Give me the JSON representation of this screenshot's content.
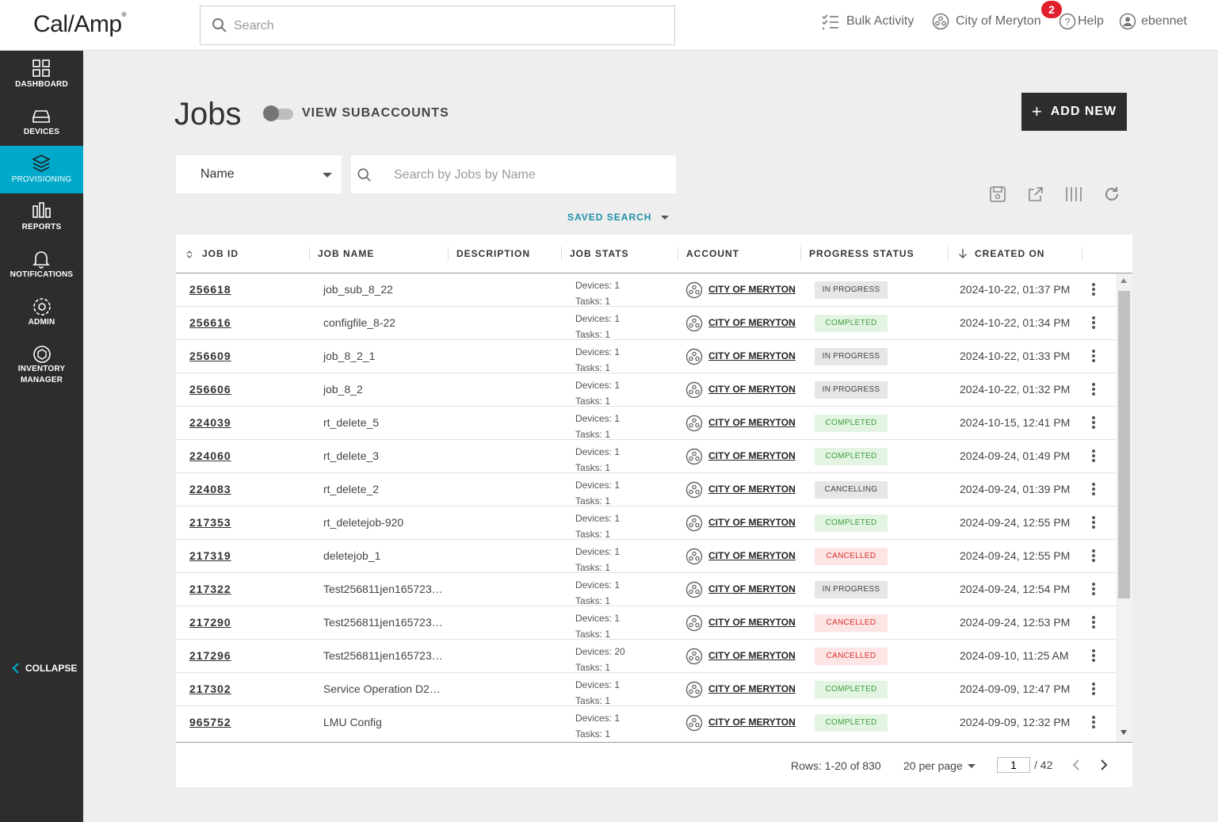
{
  "header": {
    "logo": "Cal/Amp",
    "search_placeholder": "Search",
    "bulk_activity": "Bulk Activity",
    "account": "City of Meryton",
    "notification_count": "2",
    "help": "Help",
    "user": "ebennet"
  },
  "sidebar": {
    "items": [
      {
        "label": "DASHBOARD",
        "icon": "dashboard-icon"
      },
      {
        "label": "DEVICES",
        "icon": "devices-icon"
      },
      {
        "label": "PROVISIONING",
        "icon": "layers-icon"
      },
      {
        "label": "REPORTS",
        "icon": "reports-icon"
      },
      {
        "label": "NOTIFICATIONS",
        "icon": "bell-icon"
      },
      {
        "label": "ADMIN",
        "icon": "gear-icon"
      },
      {
        "label1": "INVENTORY",
        "label2": "MANAGER",
        "icon": "inventory-icon"
      }
    ],
    "collapse": "COLLAPSE",
    "active_color": "#00a9c9"
  },
  "page": {
    "title": "Jobs",
    "toggle_label": "VIEW SUBACCOUNTS",
    "add_new": "ADD NEW",
    "filter_field": "Name",
    "filter_placeholder": "Search by Jobs by Name",
    "saved_search": "SAVED SEARCH"
  },
  "table": {
    "columns": [
      "JOB ID",
      "JOB NAME",
      "DESCRIPTION",
      "JOB STATS",
      "ACCOUNT",
      "PROGRESS STATUS",
      "CREATED ON"
    ],
    "rows": [
      {
        "id": "256618",
        "name": "job_sub_8_22",
        "devices": "Devices: 1",
        "tasks": "Tasks: 1",
        "account": "CITY OF MERYTON",
        "status": "IN PROGRESS",
        "created": "2024-10-22, 01:37 PM"
      },
      {
        "id": "256616",
        "name": "configfile_8-22",
        "devices": "Devices: 1",
        "tasks": "Tasks: 1",
        "account": "CITY OF MERYTON",
        "status": "COMPLETED",
        "created": "2024-10-22, 01:34 PM"
      },
      {
        "id": "256609",
        "name": "job_8_2_1",
        "devices": "Devices: 1",
        "tasks": "Tasks: 1",
        "account": "CITY OF MERYTON",
        "status": "IN PROGRESS",
        "created": "2024-10-22, 01:33 PM"
      },
      {
        "id": "256606",
        "name": "job_8_2",
        "devices": "Devices: 1",
        "tasks": "Tasks: 1",
        "account": "CITY OF MERYTON",
        "status": "IN PROGRESS",
        "created": "2024-10-22, 01:32 PM"
      },
      {
        "id": "224039",
        "name": "rt_delete_5",
        "devices": "Devices: 1",
        "tasks": "Tasks: 1",
        "account": "CITY OF MERYTON",
        "status": "COMPLETED",
        "created": "2024-10-15, 12:41 PM"
      },
      {
        "id": "224060",
        "name": "rt_delete_3",
        "devices": "Devices: 1",
        "tasks": "Tasks: 1",
        "account": "CITY OF MERYTON",
        "status": "COMPLETED",
        "created": "2024-09-24, 01:49 PM"
      },
      {
        "id": "224083",
        "name": "rt_delete_2",
        "devices": "Devices: 1",
        "tasks": "Tasks: 1",
        "account": "CITY OF MERYTON",
        "status": "CANCELLING",
        "created": "2024-09-24, 01:39 PM"
      },
      {
        "id": "217353",
        "name": "rt_deletejob-920",
        "devices": "Devices: 1",
        "tasks": "Tasks: 1",
        "account": "CITY OF MERYTON",
        "status": "COMPLETED",
        "created": "2024-09-24, 12:55 PM"
      },
      {
        "id": "217319",
        "name": "deletejob_1",
        "devices": "Devices: 1",
        "tasks": "Tasks: 1",
        "account": "CITY OF MERYTON",
        "status": "CANCELLED",
        "created": "2024-09-24, 12:55 PM"
      },
      {
        "id": "217322",
        "name": "Test256811jen165723…",
        "devices": "Devices: 1",
        "tasks": "Tasks: 1",
        "account": "CITY OF MERYTON",
        "status": "IN PROGRESS",
        "created": "2024-09-24, 12:54 PM"
      },
      {
        "id": "217290",
        "name": "Test256811jen165723…",
        "devices": "Devices: 1",
        "tasks": "Tasks: 1",
        "account": "CITY OF MERYTON",
        "status": "CANCELLED",
        "created": "2024-09-24, 12:53 PM"
      },
      {
        "id": "217296",
        "name": "Test256811jen165723…",
        "devices": "Devices: 20",
        "tasks": "Tasks: 1",
        "account": "CITY OF MERYTON",
        "status": "CANCELLED",
        "created": "2024-09-10, 11:25 AM"
      },
      {
        "id": "217302",
        "name": "Service Operation D22…",
        "devices": "Devices: 1",
        "tasks": "Tasks: 1",
        "account": "CITY OF MERYTON",
        "status": "COMPLETED",
        "created": "2024-09-09, 12:47 PM"
      },
      {
        "id": "965752",
        "name": "LMU Config",
        "devices": "Devices: 1",
        "tasks": "Tasks: 1",
        "account": "CITY OF MERYTON",
        "status": "COMPLETED",
        "created": "2024-09-09, 12:32 PM"
      }
    ]
  },
  "footer": {
    "rows_info": "Rows: 1-20 of 830",
    "per_page": "20 per page",
    "current_page": "1",
    "total_pages": "/ 42"
  }
}
